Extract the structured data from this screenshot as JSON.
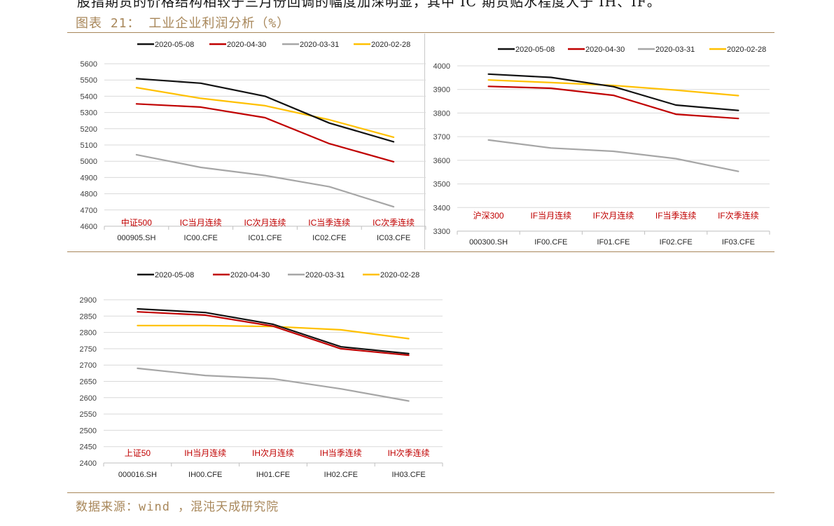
{
  "page": {
    "top_text": "股指期货的价格结构相较于三月份回调的幅度加深明显，其中 IC 期货贴水程度大于 IH、IF。",
    "figure_title": "图表 21： 工业企业利润分析（%）",
    "source": "数据来源：wind ，混沌天成研究院"
  },
  "colors": {
    "accent": "#a8875a",
    "series": [
      "#111111",
      "#c00000",
      "#a6a6a6",
      "#ffc000"
    ],
    "label_red": "#c00000",
    "grid": "#d9d9d9"
  },
  "chart_data": [
    {
      "id": "ic",
      "type": "line",
      "categories": [
        "000905.SH",
        "IC00.CFE",
        "IC01.CFE",
        "IC02.CFE",
        "IC03.CFE"
      ],
      "category_labels": [
        "中证500",
        "IC当月连续",
        "IC次月连续",
        "IC当季连续",
        "IC次季连续"
      ],
      "series": [
        {
          "name": "2020-05-08",
          "values": [
            5508,
            5480,
            5400,
            5235,
            5120
          ]
        },
        {
          "name": "2020-04-30",
          "values": [
            5353,
            5333,
            5268,
            5108,
            4997
          ]
        },
        {
          "name": "2020-03-31",
          "values": [
            5040,
            4962,
            4912,
            4843,
            4720
          ]
        },
        {
          "name": "2020-02-28",
          "values": [
            5453,
            5387,
            5342,
            5255,
            5148
          ]
        }
      ],
      "ylim": [
        4600,
        5600
      ],
      "yticks": [
        4600,
        4700,
        4800,
        4900,
        5000,
        5100,
        5200,
        5300,
        5400,
        5500,
        5600
      ],
      "legend": "top",
      "grid": true
    },
    {
      "id": "if",
      "type": "line",
      "categories": [
        "000300.SH",
        "IF00.CFE",
        "IF01.CFE",
        "IF02.CFE",
        "IF03.CFE"
      ],
      "category_labels": [
        "沪深300",
        "IF当月连续",
        "IF次月连续",
        "IF当季连续",
        "IF次季连续"
      ],
      "series": [
        {
          "name": "2020-05-08",
          "values": [
            3965,
            3951,
            3912,
            3834,
            3811
          ]
        },
        {
          "name": "2020-04-30",
          "values": [
            3913,
            3905,
            3875,
            3795,
            3777
          ]
        },
        {
          "name": "2020-03-31",
          "values": [
            3686,
            3652,
            3638,
            3607,
            3553
          ]
        },
        {
          "name": "2020-02-28",
          "values": [
            3940,
            3929,
            3917,
            3897,
            3874
          ]
        }
      ],
      "ylim": [
        3300,
        4000
      ],
      "yticks": [
        3300,
        3400,
        3500,
        3600,
        3700,
        3800,
        3900,
        4000
      ],
      "legend": "top",
      "grid": true
    },
    {
      "id": "ih",
      "type": "line",
      "categories": [
        "000016.SH",
        "IH00.CFE",
        "IH01.CFE",
        "IH02.CFE",
        "IH03.CFE"
      ],
      "category_labels": [
        "上证50",
        "IH当月连续",
        "IH次月连续",
        "IH当季连续",
        "IH次季连续"
      ],
      "series": [
        {
          "name": "2020-05-08",
          "values": [
            2872,
            2861,
            2825,
            2756,
            2735
          ]
        },
        {
          "name": "2020-04-30",
          "values": [
            2863,
            2853,
            2819,
            2750,
            2730
          ]
        },
        {
          "name": "2020-03-31",
          "values": [
            2690,
            2668,
            2658,
            2627,
            2590
          ]
        },
        {
          "name": "2020-02-28",
          "values": [
            2821,
            2821,
            2818,
            2808,
            2781
          ]
        }
      ],
      "ylim": [
        2400,
        2900
      ],
      "yticks": [
        2400,
        2450,
        2500,
        2550,
        2600,
        2650,
        2700,
        2750,
        2800,
        2850,
        2900
      ],
      "legend": "top",
      "grid": true
    }
  ]
}
